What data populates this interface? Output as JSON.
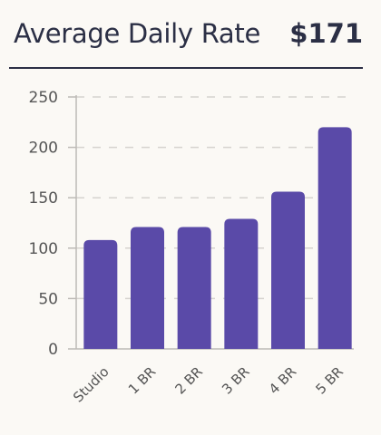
{
  "header": {
    "title": "Average Daily Rate",
    "value": "$171"
  },
  "colors": {
    "bar": "#5a4aa8",
    "grid": "#d6d3cf",
    "axis": "#bdbab6",
    "text": "#2b2f45"
  },
  "chart_data": {
    "type": "bar",
    "categories": [
      "Studio",
      "1 BR",
      "2 BR",
      "3 BR",
      "4 BR",
      "5 BR"
    ],
    "values": [
      108,
      121,
      121,
      129,
      156,
      220
    ],
    "title": "",
    "xlabel": "",
    "ylabel": "",
    "ylim": [
      0,
      250
    ],
    "yticks": [
      0,
      50,
      100,
      150,
      200,
      250
    ],
    "grid": true
  }
}
